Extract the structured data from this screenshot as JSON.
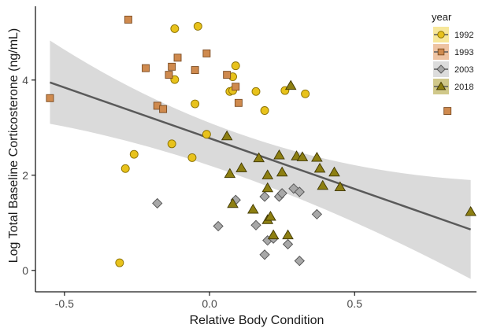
{
  "chart_data": {
    "type": "scatter",
    "title": "",
    "xlabel": "Relative Body Condition",
    "ylabel": "Log Total Baseline Corticosterone (ng/mL)",
    "xlim": [
      -0.6,
      0.92
    ],
    "ylim": [
      -0.45,
      5.55
    ],
    "x_ticks": [
      -0.5,
      0.0,
      0.5
    ],
    "x_tick_labels": [
      "-0.5",
      "0.0",
      "0.5"
    ],
    "y_ticks": [
      0,
      2,
      4
    ],
    "y_tick_labels": [
      "0",
      "2",
      "4"
    ],
    "grid": false,
    "legend": {
      "title": "year",
      "placement": "top-right"
    },
    "regression": {
      "x": [
        -0.55,
        0.9
      ],
      "y": [
        3.95,
        0.86
      ],
      "ci_lower": [
        3.08,
        -0.18
      ],
      "ci_upper": [
        4.83,
        1.9
      ],
      "ci_mid_x": 0.12,
      "ci_mid_lower": 1.98,
      "ci_mid_upper": 2.54,
      "line_color": "#5a5a5a",
      "band_color": "#d3d3d3"
    },
    "series": [
      {
        "name": "1992",
        "marker": "circle",
        "fill": "#e8c21b",
        "stroke": "#8a7000",
        "legend_bg": "#f7e79a",
        "points": [
          [
            -0.12,
            5.08
          ],
          [
            -0.04,
            5.13
          ],
          [
            0.09,
            4.3
          ],
          [
            -0.12,
            4.01
          ],
          [
            -0.05,
            3.5
          ],
          [
            0.07,
            3.76
          ],
          [
            0.08,
            4.07
          ],
          [
            0.08,
            3.78
          ],
          [
            0.16,
            3.76
          ],
          [
            0.19,
            3.36
          ],
          [
            0.26,
            3.78
          ],
          [
            0.33,
            3.71
          ],
          [
            -0.01,
            2.86
          ],
          [
            -0.13,
            2.66
          ],
          [
            -0.26,
            2.44
          ],
          [
            -0.29,
            2.14
          ],
          [
            -0.06,
            2.37
          ],
          [
            -0.31,
            0.16
          ]
        ]
      },
      {
        "name": "1993",
        "marker": "square",
        "fill": "#cf8a4e",
        "stroke": "#7a4a20",
        "legend_bg": "#eec3a2",
        "points": [
          [
            -0.28,
            5.27
          ],
          [
            -0.22,
            4.25
          ],
          [
            -0.11,
            4.47
          ],
          [
            -0.13,
            4.28
          ],
          [
            -0.05,
            4.21
          ],
          [
            -0.14,
            4.11
          ],
          [
            -0.01,
            4.56
          ],
          [
            0.06,
            4.11
          ],
          [
            0.09,
            3.86
          ],
          [
            0.1,
            3.52
          ],
          [
            -0.18,
            3.46
          ],
          [
            -0.16,
            3.39
          ],
          [
            -0.55,
            3.62
          ],
          [
            0.82,
            3.35
          ]
        ]
      },
      {
        "name": "2003",
        "marker": "diamond",
        "fill": "#a8a8a8",
        "stroke": "#505050",
        "legend_bg": "#dcdcdc",
        "points": [
          [
            -0.18,
            1.41
          ],
          [
            0.09,
            1.48
          ],
          [
            0.03,
            0.93
          ],
          [
            0.19,
            1.55
          ],
          [
            0.16,
            0.95
          ],
          [
            0.19,
            0.33
          ],
          [
            0.2,
            0.63
          ],
          [
            0.22,
            0.67
          ],
          [
            0.24,
            1.55
          ],
          [
            0.25,
            1.62
          ],
          [
            0.27,
            0.55
          ],
          [
            0.29,
            1.72
          ],
          [
            0.31,
            1.65
          ],
          [
            0.31,
            0.2
          ],
          [
            0.37,
            1.18
          ]
        ]
      },
      {
        "name": "2018",
        "marker": "triangle",
        "fill": "#8d7f12",
        "stroke": "#3e3600",
        "legend_bg": "#d0c88a",
        "points": [
          [
            0.28,
            3.88
          ],
          [
            0.06,
            2.82
          ],
          [
            0.17,
            2.36
          ],
          [
            0.24,
            2.42
          ],
          [
            0.3,
            2.4
          ],
          [
            0.32,
            2.38
          ],
          [
            0.37,
            2.37
          ],
          [
            0.38,
            2.14
          ],
          [
            0.43,
            2.06
          ],
          [
            0.11,
            2.15
          ],
          [
            0.07,
            2.03
          ],
          [
            0.2,
            2.0
          ],
          [
            0.25,
            2.06
          ],
          [
            0.2,
            1.73
          ],
          [
            0.39,
            1.78
          ],
          [
            0.45,
            1.75
          ],
          [
            0.15,
            1.28
          ],
          [
            0.08,
            1.4
          ],
          [
            0.2,
            1.06
          ],
          [
            0.21,
            1.13
          ],
          [
            0.22,
            0.74
          ],
          [
            0.27,
            0.74
          ],
          [
            0.9,
            1.23
          ]
        ]
      }
    ]
  }
}
